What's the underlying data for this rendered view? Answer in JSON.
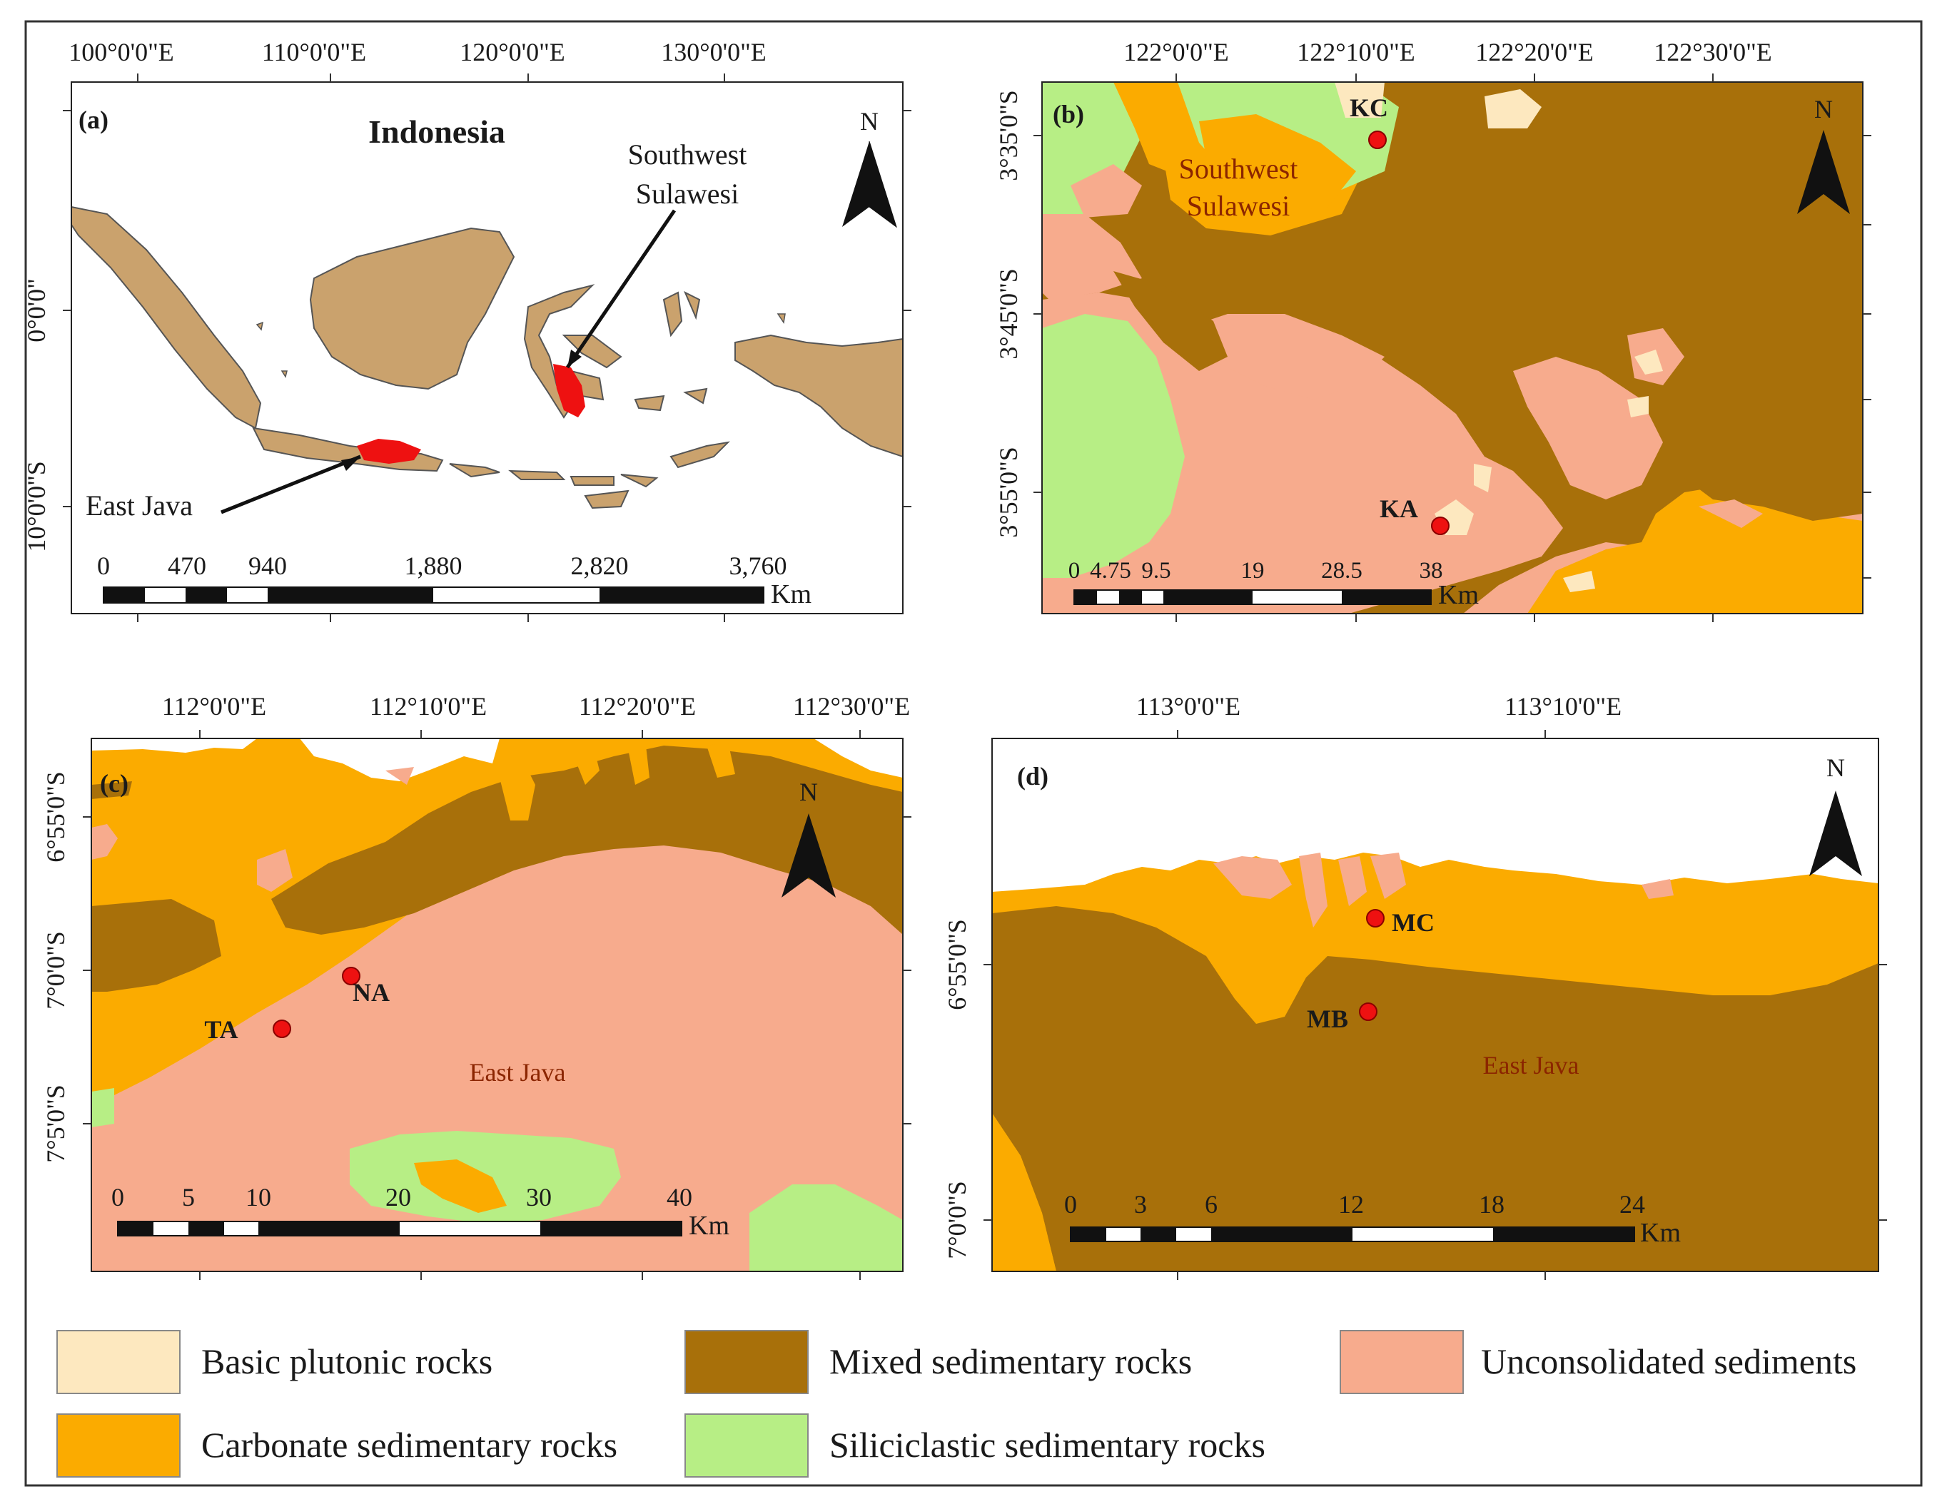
{
  "colors": {
    "basic_plutonic": "#fde8bf",
    "mixed_sedimentary": "#a8700a",
    "unconsolidated": "#f7ab8d",
    "carbonate": "#fbab00",
    "siliciclastic": "#b7ee85",
    "highlight": "#ee1111",
    "land_a": "#caa26d"
  },
  "panel_a": {
    "label": "(a)",
    "title": "Indonesia",
    "x_ticks": [
      "100°0'0\"E",
      "110°0'0\"E",
      "120°0'0\"E",
      "130°0'0\"E"
    ],
    "y_ticks": [
      "0°0'0\"",
      "10°0'0\"S"
    ],
    "callout_1": "Southwest",
    "callout_2": "Sulawesi",
    "callout_3": "East Java",
    "north": "N",
    "scale_labels": [
      "0",
      "470",
      "940",
      "1,880",
      "2,820",
      "3,760"
    ],
    "scale_unit": "Km"
  },
  "panel_b": {
    "label": "(b)",
    "x_ticks": [
      "122°0'0\"E",
      "122°10'0\"E",
      "122°20'0\"E",
      "122°30'0\"E"
    ],
    "y_ticks": [
      "3°35'0\"S",
      "3°45'0\"S",
      "3°55'0\"S"
    ],
    "region_1": "Southwest",
    "region_2": "Sulawesi",
    "site_1": "KC",
    "site_2": "KA",
    "north": "N",
    "scale_labels": [
      "0",
      "4.75",
      "9.5",
      "19",
      "28.5",
      "38"
    ],
    "scale_unit": "Km"
  },
  "panel_c": {
    "label": "(c)",
    "x_ticks": [
      "112°0'0\"E",
      "112°10'0\"E",
      "112°20'0\"E",
      "112°30'0\"E"
    ],
    "y_ticks": [
      "6°55'0\"S",
      "7°0'0\"S",
      "7°5'0\"S"
    ],
    "region": "East Java",
    "site_1": "NA",
    "site_2": "TA",
    "north": "N",
    "scale_labels": [
      "0",
      "5",
      "10",
      "20",
      "30",
      "40"
    ],
    "scale_unit": "Km"
  },
  "panel_d": {
    "label": "(d)",
    "x_ticks": [
      "113°0'0\"E",
      "113°10'0\"E"
    ],
    "y_ticks": [
      "6°55'0\"S",
      "7°0'0\"S"
    ],
    "region": "East Java",
    "site_1": "MC",
    "site_2": "MB",
    "north": "N",
    "scale_labels": [
      "0",
      "3",
      "6",
      "12",
      "18",
      "24"
    ],
    "scale_unit": "Km"
  },
  "legend": [
    {
      "label": "Basic plutonic rocks",
      "color": "#fde8bf"
    },
    {
      "label": "Mixed sedimentary rocks",
      "color": "#a8700a"
    },
    {
      "label": "Unconsolidated sediments",
      "color": "#f7ab8d"
    },
    {
      "label": "Carbonate sedimentary rocks",
      "color": "#fbab00"
    },
    {
      "label": "Siliciclastic sedimentary rocks",
      "color": "#b7ee85"
    }
  ]
}
